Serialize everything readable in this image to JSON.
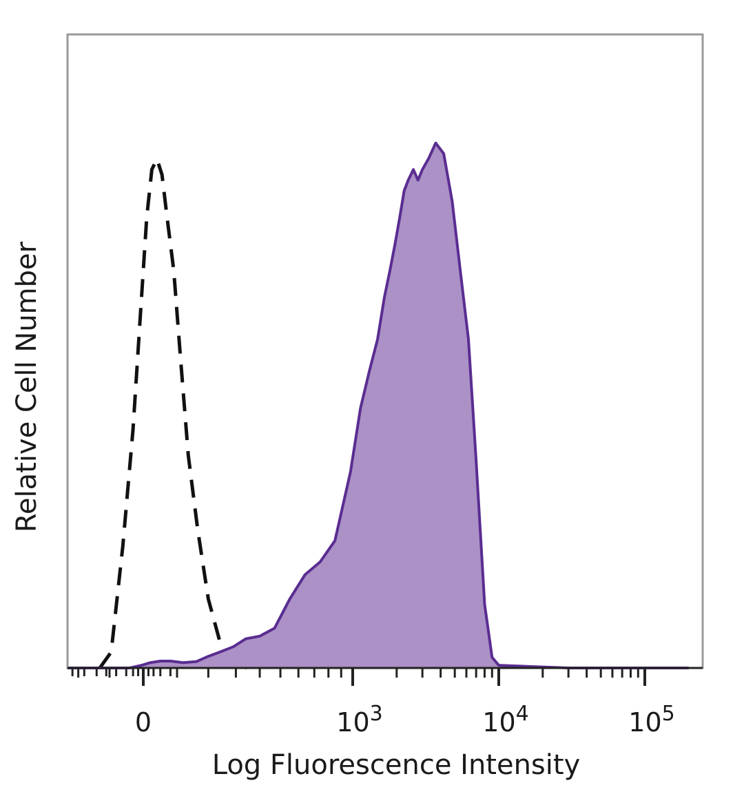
{
  "chart_data": {
    "type": "area",
    "title": "",
    "xlabel": "Log Fluorescence Intensity",
    "ylabel": "Relative Cell Number",
    "x_scale": "biexponential",
    "xlim": [
      -300,
      200000
    ],
    "ylim": [
      0,
      100
    ],
    "x_ticks": [
      {
        "value": 0,
        "label": "0"
      },
      {
        "value": 1000,
        "label": "10",
        "exp": "3"
      },
      {
        "value": 10000,
        "label": "10",
        "exp": "4"
      },
      {
        "value": 100000,
        "label": "10",
        "exp": "5"
      }
    ],
    "grid": false,
    "legend": "none",
    "series": [
      {
        "style": "dashed",
        "color": "#111111",
        "fill": "none",
        "x": [
          -130,
          -95,
          -60,
          -30,
          -10,
          10,
          25,
          40,
          55,
          70,
          90,
          110,
          135,
          165,
          200,
          240,
          280,
          320,
          345
        ],
        "y": [
          0,
          3,
          23,
          45,
          65,
          85,
          94,
          96,
          93,
          85,
          75,
          59,
          40,
          26,
          13,
          5,
          2,
          0.5,
          0
        ]
      },
      {
        "style": "solid",
        "color": "#5a2d91",
        "fill": "#ab91c6",
        "x": [
          -300,
          -40,
          -5,
          20,
          50,
          80,
          120,
          160,
          200,
          240,
          290,
          340,
          400,
          470,
          550,
          640,
          740,
          850,
          980,
          1130,
          1300,
          1480,
          1650,
          1800,
          1950,
          2100,
          2250,
          2400,
          2600,
          2800,
          3000,
          3300,
          3700,
          4200,
          4800,
          5500,
          6200,
          7000,
          8000,
          9000,
          10000,
          30000,
          200000
        ],
        "y": [
          0,
          0,
          0.5,
          1,
          1.3,
          1.3,
          1,
          1.2,
          2.2,
          3,
          4,
          5.5,
          6,
          7.5,
          13,
          17.6,
          20,
          24,
          37,
          49,
          56,
          62,
          70,
          75,
          80,
          85,
          90,
          92,
          94,
          92,
          94,
          96,
          99,
          97,
          88,
          74,
          62,
          39,
          12,
          2,
          0.5,
          0,
          0
        ]
      }
    ]
  }
}
